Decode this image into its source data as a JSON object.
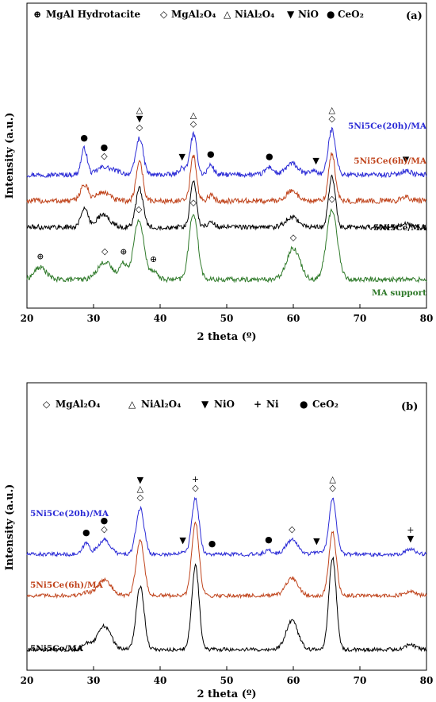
{
  "chart_data": [
    {
      "type": "line",
      "panel": "(a)",
      "legend": [
        {
          "symbol": "⊕",
          "label": "MgAl Hydrotacite"
        },
        {
          "symbol": "◇",
          "label": "MgAl₂O₄"
        },
        {
          "symbol": "△",
          "label": "NiAl₂O₄"
        },
        {
          "symbol": "▼",
          "label": "NiO"
        },
        {
          "symbol": "●",
          "label": "CeO₂"
        }
      ],
      "xlabel": "2 theta (º)",
      "ylabel": "Intensity (a.u.)",
      "xlim": [
        20,
        80
      ],
      "xticks": [
        20,
        30,
        40,
        50,
        60,
        70,
        80
      ],
      "grid": false,
      "series": [
        {
          "name": "5Ni5Ce(20h)/MA",
          "color": "#2b2bd6",
          "offset": 3.0,
          "noise": 0.07,
          "peaks": [
            [
              28.6,
              0.75,
              0.45
            ],
            [
              31.4,
              0.2,
              0.9
            ],
            [
              33.2,
              0.1,
              1.0
            ],
            [
              36.9,
              1.05,
              0.55
            ],
            [
              43.3,
              0.2,
              0.5
            ],
            [
              45.0,
              1.15,
              0.5
            ],
            [
              47.6,
              0.28,
              0.45
            ],
            [
              56.4,
              0.22,
              0.6
            ],
            [
              59.8,
              0.32,
              0.9
            ],
            [
              63.0,
              0.12,
              0.6
            ],
            [
              65.8,
              1.3,
              0.55
            ],
            [
              76.9,
              0.12,
              0.7
            ]
          ]
        },
        {
          "name": "5Ni5Ce(6h)/MA",
          "color": "#c0441c",
          "offset": 2.25,
          "noise": 0.08,
          "peaks": [
            [
              28.6,
              0.45,
              0.6
            ],
            [
              31.4,
              0.25,
              1.0
            ],
            [
              36.9,
              1.15,
              0.5
            ],
            [
              45.0,
              1.3,
              0.45
            ],
            [
              47.6,
              0.15,
              0.5
            ],
            [
              59.8,
              0.28,
              0.9
            ],
            [
              65.8,
              1.35,
              0.5
            ],
            [
              76.9,
              0.1,
              0.8
            ]
          ]
        },
        {
          "name": "5Ni5Ce/MA",
          "color": "#000000",
          "offset": 1.5,
          "noise": 0.07,
          "peaks": [
            [
              28.6,
              0.55,
              0.5
            ],
            [
              31.4,
              0.35,
              1.0
            ],
            [
              36.9,
              1.1,
              0.55
            ],
            [
              45.0,
              1.35,
              0.45
            ],
            [
              47.6,
              0.15,
              0.5
            ],
            [
              59.8,
              0.3,
              0.9
            ],
            [
              65.8,
              1.45,
              0.5
            ],
            [
              76.9,
              0.1,
              0.8
            ]
          ]
        },
        {
          "name": "MA support",
          "color": "#2f7a2a",
          "offset": 0.0,
          "noise": 0.07,
          "peaks": [
            [
              22.0,
              0.35,
              0.9
            ],
            [
              31.7,
              0.5,
              1.1
            ],
            [
              34.5,
              0.45,
              0.6
            ],
            [
              36.8,
              1.7,
              0.75
            ],
            [
              39.0,
              0.25,
              0.6
            ],
            [
              45.0,
              1.9,
              0.65
            ],
            [
              60.0,
              0.9,
              1.0
            ],
            [
              65.8,
              2.0,
              0.8
            ]
          ]
        }
      ],
      "annotations": [
        {
          "symbols": [
            "●"
          ],
          "x": 28.6,
          "series": 0
        },
        {
          "symbols": [
            "●",
            "◇"
          ],
          "x": 31.6,
          "series": 0
        },
        {
          "symbols": [
            "△",
            "▼",
            "◇"
          ],
          "x": 36.9,
          "series": 0
        },
        {
          "symbols": [
            "▼"
          ],
          "x": 43.3,
          "series": 0
        },
        {
          "symbols": [
            "△",
            "◇"
          ],
          "x": 45.0,
          "series": 0
        },
        {
          "symbols": [
            "●"
          ],
          "x": 47.6,
          "series": 0
        },
        {
          "symbols": [
            "●"
          ],
          "x": 56.4,
          "series": 0
        },
        {
          "symbols": [
            "▼"
          ],
          "x": 63.4,
          "series": 0
        },
        {
          "symbols": [
            "△",
            "◇"
          ],
          "x": 65.8,
          "series": 0
        },
        {
          "symbols": [
            "▼"
          ],
          "x": 76.9,
          "series": 0
        },
        {
          "symbols": [
            "⊕"
          ],
          "x": 22.0,
          "series": 3
        },
        {
          "symbols": [
            "◇"
          ],
          "x": 31.7,
          "series": 3
        },
        {
          "symbols": [
            "⊕"
          ],
          "x": 34.5,
          "series": 3
        },
        {
          "symbols": [
            "◇"
          ],
          "x": 36.8,
          "series": 3
        },
        {
          "symbols": [
            "⊕"
          ],
          "x": 39.0,
          "series": 3
        },
        {
          "symbols": [
            "◇"
          ],
          "x": 45.0,
          "series": 3
        },
        {
          "symbols": [
            "◇"
          ],
          "x": 60.0,
          "series": 3
        },
        {
          "symbols": [
            "◇"
          ],
          "x": 65.8,
          "series": 3
        }
      ]
    },
    {
      "type": "line",
      "panel": "(b)",
      "legend": [
        {
          "symbol": "◇",
          "label": "MgAl₂O₄"
        },
        {
          "symbol": "△",
          "label": "NiAl₂O₄"
        },
        {
          "symbol": "▼",
          "label": "NiO"
        },
        {
          "symbol": "+",
          "label": "Ni"
        },
        {
          "symbol": "●",
          "label": "CeO₂"
        }
      ],
      "xlabel": "2 theta (º)",
      "ylabel": "Intensity (a.u.)",
      "xlim": [
        20,
        80
      ],
      "xticks": [
        20,
        30,
        40,
        50,
        60,
        70,
        80
      ],
      "grid": false,
      "series": [
        {
          "name": "5Ni5Ce(20h)/MA",
          "color": "#2b2bd6",
          "offset": 3.0,
          "noise": 0.06,
          "peaks": [
            [
              28.9,
              0.35,
              0.5
            ],
            [
              31.6,
              0.45,
              0.9
            ],
            [
              37.0,
              1.45,
              0.6
            ],
            [
              43.4,
              0.1,
              0.5
            ],
            [
              45.3,
              1.75,
              0.55
            ],
            [
              56.3,
              0.12,
              0.6
            ],
            [
              59.8,
              0.45,
              0.9
            ],
            [
              63.5,
              0.08,
              0.6
            ],
            [
              65.9,
              1.75,
              0.55
            ],
            [
              77.6,
              0.15,
              0.8
            ]
          ]
        },
        {
          "name": "5Ni5Ce(6h)/MA",
          "color": "#c0441c",
          "offset": 1.7,
          "noise": 0.06,
          "peaks": [
            [
              28.9,
              0.1,
              0.6
            ],
            [
              31.6,
              0.5,
              1.0
            ],
            [
              37.0,
              1.75,
              0.6
            ],
            [
              45.3,
              2.3,
              0.55
            ],
            [
              59.8,
              0.55,
              0.9
            ],
            [
              65.9,
              2.0,
              0.55
            ],
            [
              77.6,
              0.12,
              0.8
            ]
          ]
        },
        {
          "name": "5Ni5Ce/MA",
          "color": "#000000",
          "offset": 0.0,
          "noise": 0.06,
          "peaks": [
            [
              28.9,
              0.2,
              0.6
            ],
            [
              31.6,
              0.75,
              1.0
            ],
            [
              37.0,
              2.0,
              0.6
            ],
            [
              45.3,
              2.65,
              0.55
            ],
            [
              59.8,
              0.9,
              0.9
            ],
            [
              65.9,
              2.9,
              0.55
            ],
            [
              77.6,
              0.15,
              0.8
            ]
          ]
        }
      ],
      "annotations": [
        {
          "symbols": [
            "●"
          ],
          "x": 28.9,
          "series": 0
        },
        {
          "symbols": [
            "●",
            "◇"
          ],
          "x": 31.6,
          "series": 0
        },
        {
          "symbols": [
            "▼",
            "△",
            "◇"
          ],
          "x": 37.0,
          "series": 0
        },
        {
          "symbols": [
            "▼"
          ],
          "x": 43.4,
          "series": 0
        },
        {
          "symbols": [
            "+",
            "◇"
          ],
          "x": 45.3,
          "series": 0
        },
        {
          "symbols": [
            "●"
          ],
          "x": 47.8,
          "series": 0
        },
        {
          "symbols": [
            "●"
          ],
          "x": 56.3,
          "series": 0
        },
        {
          "symbols": [
            "◇"
          ],
          "x": 59.8,
          "series": 0
        },
        {
          "symbols": [
            "▼"
          ],
          "x": 63.5,
          "series": 0
        },
        {
          "symbols": [
            "△",
            "◇"
          ],
          "x": 65.9,
          "series": 0
        },
        {
          "symbols": [
            "+",
            "▼"
          ],
          "x": 77.6,
          "series": 0
        }
      ]
    }
  ]
}
